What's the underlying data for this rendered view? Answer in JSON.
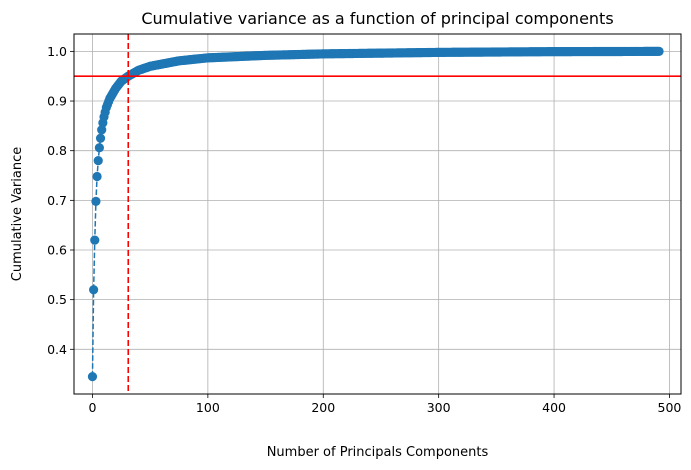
{
  "chart_data": {
    "type": "line",
    "title": "Cumulative variance as a function of principal components",
    "xlabel": "Number of Principals Components",
    "ylabel": "Cumulative Variance",
    "xlim": [
      -16,
      510
    ],
    "ylim": [
      0.31,
      1.035
    ],
    "x_ticks": [
      0,
      100,
      200,
      300,
      400,
      500
    ],
    "y_ticks": [
      0.4,
      0.5,
      0.6,
      0.7,
      0.8,
      0.9,
      1.0
    ],
    "x_tick_labels": [
      "0",
      "100",
      "200",
      "300",
      "400",
      "500"
    ],
    "y_tick_labels": [
      "0.4",
      "0.5",
      "0.6",
      "0.7",
      "0.8",
      "0.9",
      "1.0"
    ],
    "grid": true,
    "series": [
      {
        "marker": "circle",
        "line_style": "dashed",
        "color": "#1f77b4",
        "n_points": 492,
        "key_points": [
          {
            "x": 0,
            "y": 0.345
          },
          {
            "x": 1,
            "y": 0.52
          },
          {
            "x": 2,
            "y": 0.62
          },
          {
            "x": 3,
            "y": 0.698
          },
          {
            "x": 4,
            "y": 0.748
          },
          {
            "x": 5,
            "y": 0.78
          },
          {
            "x": 6,
            "y": 0.806
          },
          {
            "x": 7,
            "y": 0.825
          },
          {
            "x": 8,
            "y": 0.842
          },
          {
            "x": 9,
            "y": 0.856
          },
          {
            "x": 10,
            "y": 0.868
          },
          {
            "x": 12,
            "y": 0.887
          },
          {
            "x": 15,
            "y": 0.905
          },
          {
            "x": 20,
            "y": 0.925
          },
          {
            "x": 25,
            "y": 0.94
          },
          {
            "x": 31,
            "y": 0.95
          },
          {
            "x": 40,
            "y": 0.962
          },
          {
            "x": 50,
            "y": 0.97
          },
          {
            "x": 75,
            "y": 0.981
          },
          {
            "x": 100,
            "y": 0.987
          },
          {
            "x": 150,
            "y": 0.992
          },
          {
            "x": 200,
            "y": 0.995
          },
          {
            "x": 300,
            "y": 0.998
          },
          {
            "x": 400,
            "y": 0.9995
          },
          {
            "x": 491,
            "y": 1.0
          }
        ]
      }
    ],
    "reference_lines": [
      {
        "orientation": "horizontal",
        "value": 0.95,
        "color": "#ff0000",
        "style": "solid"
      },
      {
        "orientation": "vertical",
        "value": 31,
        "color": "#ff0000",
        "style": "dashed"
      }
    ]
  }
}
